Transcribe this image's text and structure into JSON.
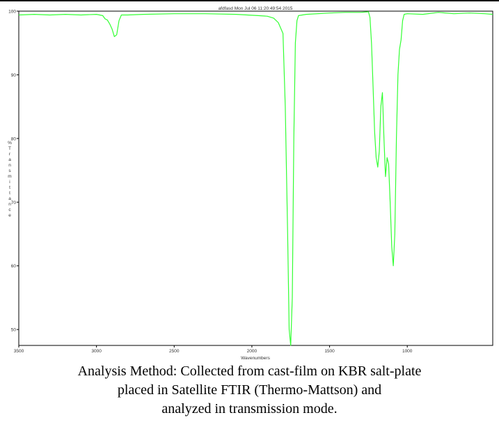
{
  "chart_data": {
    "type": "line",
    "title": "afdfasd Mon Jul 06 11:20:49:54 2015",
    "xlabel": "Wavenumbers",
    "ylabel": "% Transmittance",
    "ylabel_letters": [
      "%",
      "T",
      "r",
      "a",
      "n",
      "s",
      "m",
      "i",
      "t",
      "t",
      "a",
      "n",
      "c",
      "e"
    ],
    "xlim": [
      3500,
      450
    ],
    "ylim": [
      47.5,
      100
    ],
    "x_ticks": [
      3500,
      3000,
      2500,
      2000,
      1500,
      1000
    ],
    "y_ticks": [
      100,
      90,
      80,
      70,
      60,
      50
    ],
    "grid": false,
    "series": [
      {
        "color": "#33ff33",
        "x": [
          3500,
          3400,
          3300,
          3200,
          3100,
          3000,
          2960,
          2945,
          2930,
          2915,
          2900,
          2885,
          2870,
          2855,
          2840,
          2800,
          2700,
          2500,
          2300,
          2100,
          1960,
          1900,
          1860,
          1830,
          1800,
          1785,
          1770,
          1760,
          1750,
          1740,
          1730,
          1720,
          1710,
          1700,
          1650,
          1500,
          1400,
          1300,
          1250,
          1240,
          1230,
          1220,
          1210,
          1200,
          1190,
          1180,
          1170,
          1160,
          1150,
          1140,
          1130,
          1120,
          1110,
          1100,
          1090,
          1080,
          1070,
          1060,
          1050,
          1040,
          1030,
          1020,
          1000,
          900,
          800,
          700,
          600,
          500,
          450
        ],
        "y": [
          99.4,
          99.5,
          99.4,
          99.5,
          99.4,
          99.5,
          99.3,
          98.8,
          98.6,
          98.0,
          97.2,
          96.0,
          96.3,
          98.5,
          99.4,
          99.4,
          99.5,
          99.6,
          99.6,
          99.5,
          99.3,
          99.2,
          98.9,
          98.2,
          96.5,
          85.0,
          65.0,
          50.0,
          47.5,
          55.0,
          80.0,
          95.0,
          98.5,
          99.3,
          99.5,
          99.7,
          99.8,
          99.8,
          99.9,
          99.0,
          95.0,
          88.0,
          81.0,
          77.0,
          75.5,
          78.0,
          85.0,
          87.2,
          80.0,
          74.0,
          77.0,
          76.0,
          70.0,
          63.0,
          60.0,
          65.0,
          80.0,
          90.0,
          94.0,
          95.5,
          98.5,
          99.5,
          99.6,
          99.5,
          99.8,
          99.6,
          99.7,
          99.6,
          99.5
        ]
      }
    ]
  },
  "caption": {
    "line1": "Analysis Method: Collected from cast-film on KBR salt-plate",
    "line2": "placed in Satellite FTIR (Thermo-Mattson) and",
    "line3": "analyzed in transmission mode."
  }
}
